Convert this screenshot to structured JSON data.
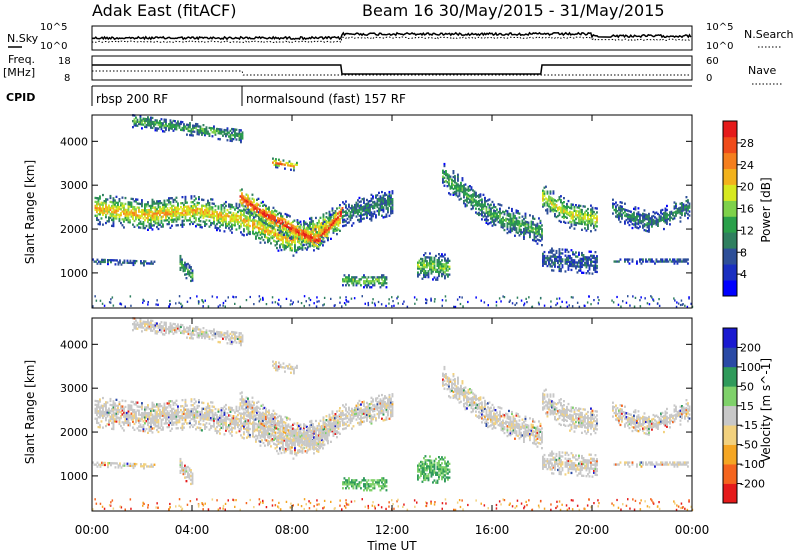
{
  "header": {
    "radar": "Adak East (fitACF)",
    "beam_date": "Beam 16  30/May/2015 - 31/May/2015"
  },
  "left_labels": {
    "nsky": "N.Sky",
    "nsky_hi": "10^5",
    "nsky_lo": "10^0",
    "freq": "Freq.",
    "freq_unit": "[MHz]",
    "freq_hi": "18",
    "freq_lo": "8",
    "cpid": "CPID"
  },
  "right_labels": {
    "nsearch": "N.Search",
    "ns_hi": "10^5",
    "ns_lo": "10^0",
    "nave": "Nave",
    "nave_hi": "60",
    "nave_lo": "0"
  },
  "cpid_segments": [
    {
      "start_h": 0,
      "label": "rbsp 200 RF"
    },
    {
      "start_h": 6,
      "label": "normalsound (fast) 157 RF"
    }
  ],
  "chart_data": [
    {
      "type": "heatmap",
      "quantity": "Power",
      "ylabel": "Slant Range [km]",
      "ylim": [
        200,
        4600
      ],
      "yticks": [
        "1000",
        "2000",
        "3000",
        "4000"
      ],
      "colorbar_label": "Power [dB]",
      "colorbar_ticks": [
        "4",
        "8",
        "12",
        "16",
        "20",
        "24",
        "28"
      ],
      "colors": [
        "#0000ff",
        "#1a2fc0",
        "#2e4f98",
        "#2f7f5f",
        "#2aa04a",
        "#7ed14a",
        "#d7e81f",
        "#f2b21c",
        "#f57f1e",
        "#ef4b1a",
        "#e51b1b"
      ],
      "data_gap_h": [
        20.3,
        20.75
      ],
      "echo_bands": [
        {
          "t0": 0.1,
          "t1": 9.9,
          "r_mid": [
            2450,
            2300,
            2400,
            2200,
            1700,
            2200
          ],
          "width": 350,
          "intensity": 0.6
        },
        {
          "t0": 5.9,
          "t1": 10.0,
          "r_mid": [
            2700,
            2300,
            2000,
            1700,
            2400
          ],
          "width": 250,
          "intensity": 0.9
        },
        {
          "t0": 1.6,
          "t1": 6.0,
          "r_mid": [
            4450,
            4100
          ],
          "width": 150,
          "intensity": 0.3
        },
        {
          "t0": 7.2,
          "t1": 8.2,
          "r_mid": [
            3500,
            3400
          ],
          "width": 100,
          "intensity": 0.8
        },
        {
          "t0": 10.0,
          "t1": 12.0,
          "r_mid": [
            2300,
            2600
          ],
          "width": 300,
          "intensity": 0.2
        },
        {
          "t0": 10.0,
          "t1": 11.8,
          "r_mid": [
            800,
            800
          ],
          "width": 150,
          "intensity": 0.4
        },
        {
          "t0": 13.0,
          "t1": 14.3,
          "r_mid": [
            1150,
            1100
          ],
          "width": 300,
          "intensity": 0.4
        },
        {
          "t0": 14.0,
          "t1": 18.0,
          "r_mid": [
            3200,
            2300,
            1900
          ],
          "width": 300,
          "intensity": 0.3
        },
        {
          "t0": 18.0,
          "t1": 20.2,
          "r_mid": [
            2700,
            2300,
            2200
          ],
          "width": 300,
          "intensity": 0.5
        },
        {
          "t0": 18.0,
          "t1": 20.2,
          "r_mid": [
            1300,
            1200
          ],
          "width": 250,
          "intensity": 0.1
        },
        {
          "t0": 20.8,
          "t1": 23.9,
          "r_mid": [
            2400,
            2100,
            2500
          ],
          "width": 250,
          "intensity": 0.2
        },
        {
          "t0": 20.8,
          "t1": 23.8,
          "r_mid": [
            1250,
            1250
          ],
          "width": 60,
          "intensity": 0.1
        },
        {
          "t0": 0.0,
          "t1": 2.5,
          "r_mid": [
            1250,
            1200
          ],
          "width": 60,
          "intensity": 0.1
        },
        {
          "t0": 3.5,
          "t1": 4.0,
          "r_mid": [
            1200,
            900
          ],
          "width": 200,
          "intensity": 0.3
        }
      ]
    },
    {
      "type": "heatmap",
      "quantity": "Velocity",
      "ylabel": "Slant Range [km]",
      "ylim": [
        200,
        4600
      ],
      "yticks": [
        "1000",
        "2000",
        "3000",
        "4000"
      ],
      "xlabel": "Time UT",
      "xticks": [
        "00:00",
        "04:00",
        "08:00",
        "12:00",
        "16:00",
        "20:00",
        "00:00"
      ],
      "colorbar_label": "Velocity [m s^-1]",
      "colorbar_ticks": [
        "-200",
        "-100",
        "-50",
        "-15",
        "15",
        "50",
        "100",
        "200"
      ],
      "colors": [
        "#e51b1b",
        "#f5651e",
        "#f5a623",
        "#f2d17e",
        "#c8c8c8",
        "#7fd16a",
        "#2f9a5a",
        "#2a4aa5",
        "#1a1ad0"
      ],
      "data_gap_h": [
        20.3,
        20.75
      ]
    }
  ]
}
